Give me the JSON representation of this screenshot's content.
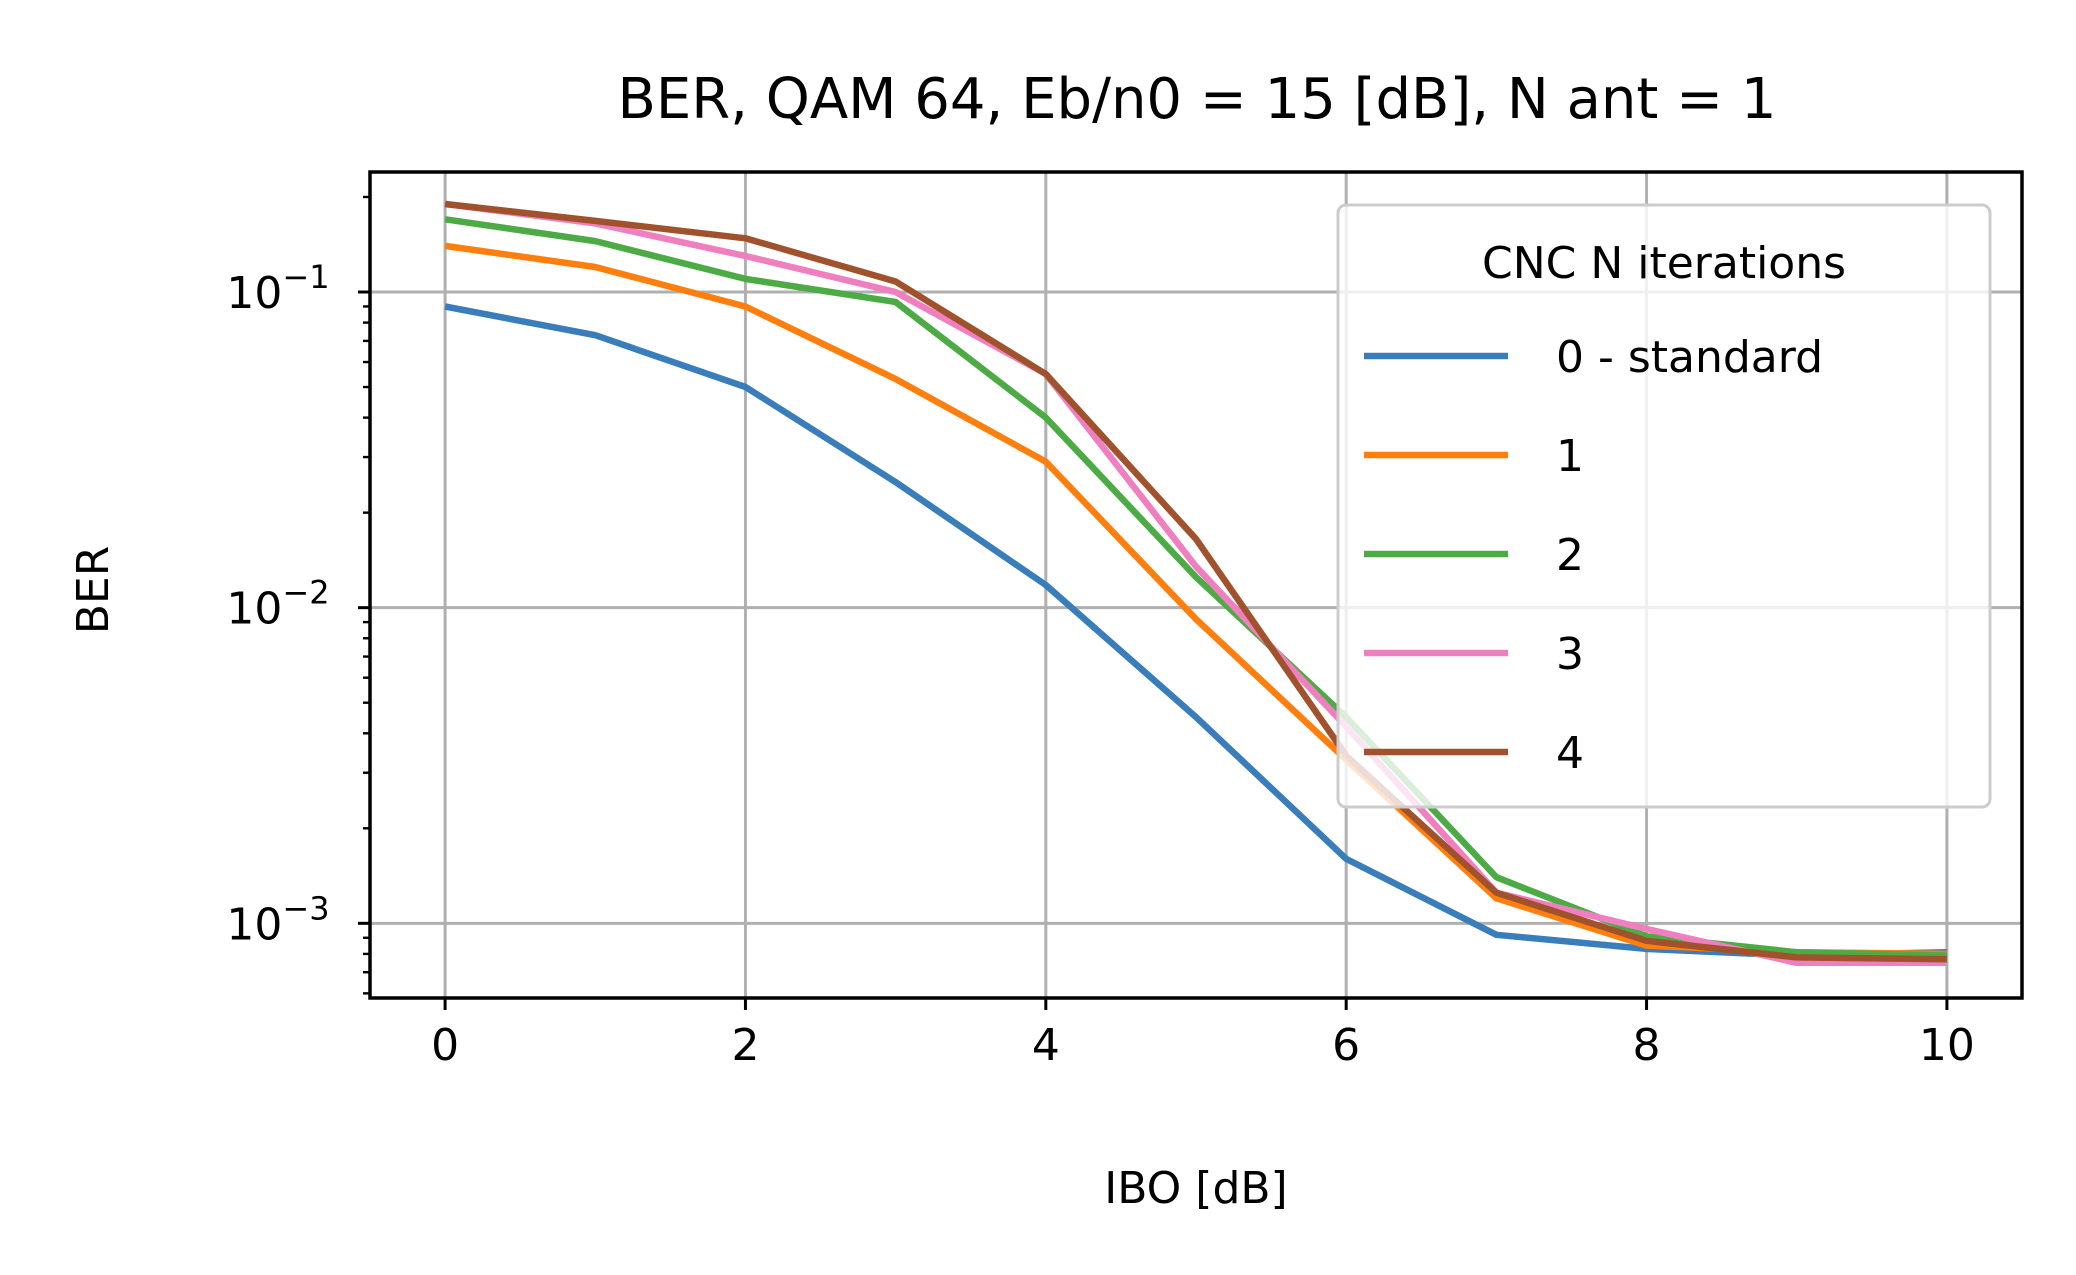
{
  "chart_data": {
    "type": "line",
    "title": "BER, QAM 64, Eb/n0 = 15 [dB], N ant = 1",
    "xlabel": "IBO [dB]",
    "ylabel": "BER",
    "xlim": [
      -0.5,
      10.5
    ],
    "ylim": [
      0.00058,
      0.24
    ],
    "yscale": "log",
    "grid": true,
    "x": [
      0,
      1,
      2,
      3,
      4,
      5,
      6,
      7,
      8,
      9,
      10
    ],
    "x_ticks": [
      "0",
      "2",
      "4",
      "6",
      "8",
      "10"
    ],
    "y_ticks": [
      {
        "base": "10",
        "exp": "−1"
      },
      {
        "base": "10",
        "exp": "−2"
      },
      {
        "base": "10",
        "exp": "−3"
      }
    ],
    "legend": {
      "title": "CNC N iterations",
      "position": "upper right"
    },
    "series": [
      {
        "name": "0 - standard",
        "color": "#3a7dbb",
        "values": [
          0.09,
          0.073,
          0.05,
          0.025,
          0.0118,
          0.0045,
          0.0016,
          0.00092,
          0.00083,
          0.00079,
          0.00081
        ]
      },
      {
        "name": "1",
        "color": "#ff7f0e",
        "values": [
          0.14,
          0.12,
          0.09,
          0.053,
          0.029,
          0.0092,
          0.0033,
          0.0012,
          0.00085,
          0.00081,
          0.0008
        ]
      },
      {
        "name": "2",
        "color": "#4dab45",
        "values": [
          0.17,
          0.145,
          0.11,
          0.093,
          0.04,
          0.0125,
          0.0045,
          0.0014,
          0.00091,
          0.00081,
          0.00079
        ]
      },
      {
        "name": "3",
        "color": "#f07fbf",
        "values": [
          0.19,
          0.165,
          0.13,
          0.1,
          0.055,
          0.0135,
          0.0042,
          0.00125,
          0.00096,
          0.00075,
          0.00075
        ]
      },
      {
        "name": "4",
        "color": "#a0522d",
        "values": [
          0.19,
          0.168,
          0.148,
          0.108,
          0.055,
          0.0165,
          0.0034,
          0.00125,
          0.00088,
          0.00078,
          0.00077
        ]
      }
    ]
  }
}
